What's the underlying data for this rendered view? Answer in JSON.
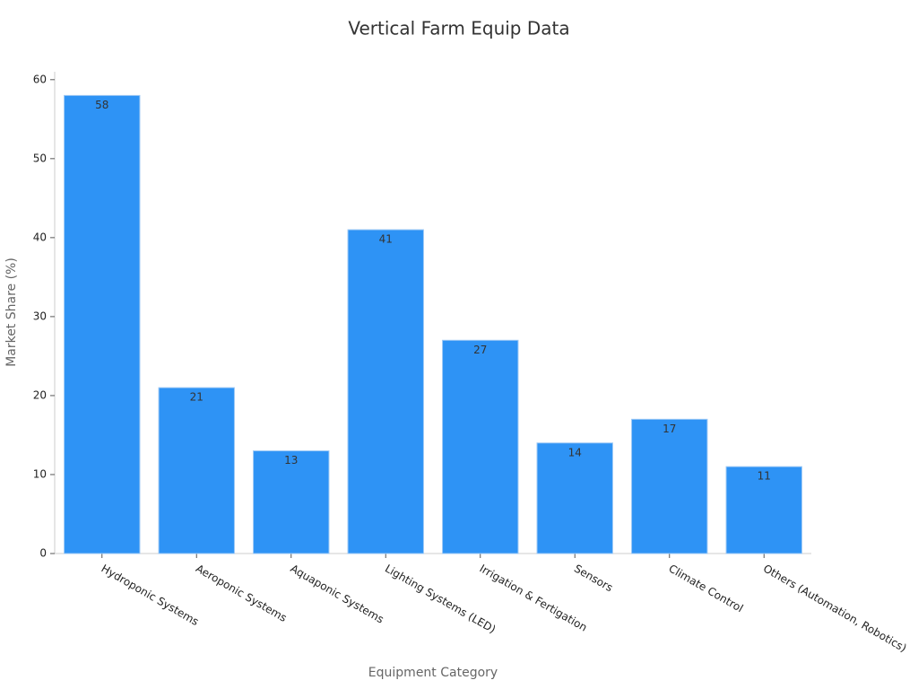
{
  "chart_data": {
    "type": "bar",
    "title": "Vertical Farm Equip Data",
    "x_label": "Equipment Category",
    "y_label": "Market Share (%)",
    "categories": [
      "Hydroponic Systems",
      "Aeroponic Systems",
      "Aquaponic Systems",
      "Lighting Systems (LED)",
      "Irrigation & Fertigation",
      "Sensors",
      "Climate Control",
      "Others (Automation, Robotics)"
    ],
    "values": [
      58,
      21,
      13,
      41,
      27,
      14,
      17,
      11
    ],
    "color": "#2e93f5",
    "ylim": [
      0,
      61
    ],
    "yticks": [
      0,
      10,
      20,
      30,
      40,
      50,
      60
    ]
  }
}
